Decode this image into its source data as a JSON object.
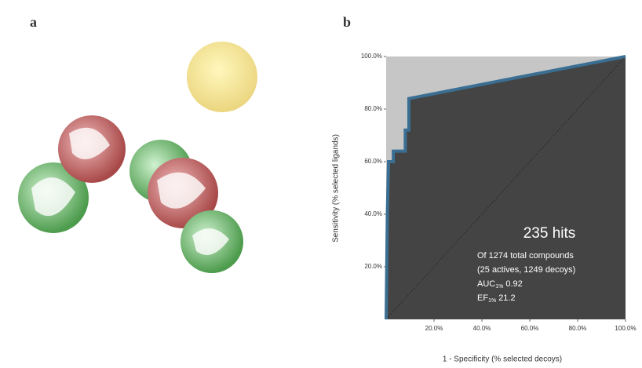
{
  "panels": {
    "a": "a",
    "b": "b"
  },
  "chart_data": {
    "type": "roc",
    "xlabel": "1 - Specificity (% selected decoys)",
    "ylabel": "Sensitivity (% selected ligands)",
    "xlim": [
      0,
      100
    ],
    "ylim": [
      0,
      100
    ],
    "xticks": [
      {
        "value": 20,
        "label": "20.0%"
      },
      {
        "value": 40,
        "label": "40.0%"
      },
      {
        "value": 60,
        "label": "60.0%"
      },
      {
        "value": 80,
        "label": "80.0%"
      },
      {
        "value": 100,
        "label": "100.0%"
      }
    ],
    "yticks": [
      {
        "value": 20,
        "label": "20.0%"
      },
      {
        "value": 40,
        "label": "40.0%"
      },
      {
        "value": 60,
        "label": "60.0%"
      },
      {
        "value": 80,
        "label": "80.0%"
      },
      {
        "value": 100,
        "label": "100.0%"
      }
    ],
    "x": [
      0,
      0.5,
      1,
      3,
      3,
      8,
      8,
      9.5,
      9.5,
      100
    ],
    "series": [
      {
        "color": "#3a6f93",
        "values": [
          0,
          40,
          60,
          60,
          64,
          64,
          72,
          72,
          84,
          100
        ]
      }
    ],
    "annotations": {
      "hits": "235 hits",
      "total": "Of 1274 total compounds",
      "split": "(25 actives, 1249 decoys)",
      "auc": "AUC",
      "auc_sub": "1%",
      "auc_value": "0.92",
      "ef": "EF",
      "ef_sub": "1%",
      "ef_value": "21.2"
    }
  }
}
